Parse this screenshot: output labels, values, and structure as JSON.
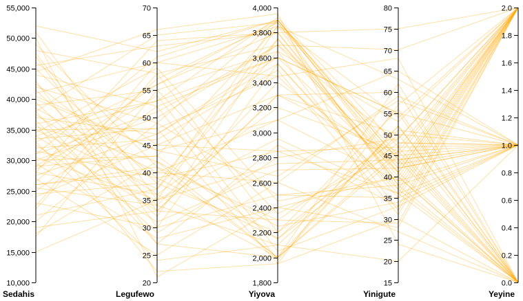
{
  "chart_data": {
    "type": "parallel-coordinates",
    "title": "",
    "line_color": "#ffa500",
    "line_opacity": 0.35,
    "axes": [
      {
        "name": "Sedahis",
        "min": 10000,
        "max": 55000,
        "ticks": [
          10000,
          15000,
          20000,
          25000,
          30000,
          35000,
          40000,
          45000,
          50000,
          55000
        ],
        "tick_labels": [
          "10,000",
          "15,000",
          "20,000",
          "25,000",
          "30,000",
          "35,000",
          "40,000",
          "45,000",
          "50,000",
          "55,000"
        ]
      },
      {
        "name": "Legufewo",
        "min": 20,
        "max": 70,
        "ticks": [
          20,
          25,
          30,
          35,
          40,
          45,
          50,
          55,
          60,
          65,
          70
        ],
        "tick_labels": [
          "20",
          "25",
          "30",
          "35",
          "40",
          "45",
          "50",
          "55",
          "60",
          "65",
          "70"
        ]
      },
      {
        "name": "Yiyova",
        "min": 1800,
        "max": 4000,
        "ticks": [
          1800,
          2000,
          2200,
          2400,
          2600,
          2800,
          3000,
          3200,
          3400,
          3600,
          3800,
          4000
        ],
        "tick_labels": [
          "1,800",
          "2,000",
          "2,200",
          "2,400",
          "2,600",
          "2,800",
          "3,000",
          "3,200",
          "3,400",
          "3,600",
          "3,800",
          "4,000"
        ]
      },
      {
        "name": "Yinigute",
        "min": 15,
        "max": 80,
        "ticks": [
          15,
          20,
          25,
          30,
          35,
          40,
          45,
          50,
          55,
          60,
          65,
          70,
          75,
          80
        ],
        "tick_labels": [
          "15",
          "20",
          "25",
          "30",
          "35",
          "40",
          "45",
          "50",
          "55",
          "60",
          "65",
          "70",
          "75",
          "80"
        ]
      },
      {
        "name": "Yeyine",
        "min": 0,
        "max": 2,
        "ticks": [
          0,
          0.2,
          0.4,
          0.6,
          0.8,
          1.0,
          1.2,
          1.4,
          1.6,
          1.8,
          2.0
        ],
        "tick_labels": [
          "0.0",
          "0.2",
          "0.4",
          "0.6",
          "0.8",
          "1.0",
          "1.2",
          "1.4",
          "1.6",
          "1.8",
          "2.0"
        ]
      }
    ],
    "rows": [
      [
        52000,
        62,
        3900,
        45,
        2
      ],
      [
        51000,
        35,
        3850,
        38,
        1
      ],
      [
        49000,
        41,
        2000,
        52,
        0
      ],
      [
        48000,
        58,
        3700,
        42,
        2
      ],
      [
        47000,
        30,
        2500,
        35,
        1
      ],
      [
        46000,
        45,
        3300,
        60,
        0
      ],
      [
        45500,
        63,
        3800,
        40,
        2
      ],
      [
        45000,
        38,
        2200,
        48,
        1
      ],
      [
        44000,
        52,
        3600,
        55,
        0
      ],
      [
        43000,
        27,
        2900,
        33,
        2
      ],
      [
        42000,
        49,
        3900,
        44,
        1
      ],
      [
        41500,
        34,
        2100,
        50,
        0
      ],
      [
        41000,
        60,
        3450,
        37,
        2
      ],
      [
        40000,
        44,
        2650,
        58,
        1
      ],
      [
        39500,
        32,
        3750,
        41,
        0
      ],
      [
        39000,
        55,
        2350,
        46,
        2
      ],
      [
        38500,
        40,
        3100,
        39,
        1
      ],
      [
        38000,
        65,
        3880,
        43,
        2
      ],
      [
        37500,
        36,
        2000,
        62,
        0
      ],
      [
        37000,
        47,
        3550,
        36,
        1
      ],
      [
        36500,
        29,
        2800,
        49,
        2
      ],
      [
        36000,
        53,
        3920,
        47,
        0
      ],
      [
        35500,
        42,
        2250,
        34,
        1
      ],
      [
        35000,
        37,
        3650,
        53,
        2
      ],
      [
        34500,
        59,
        2450,
        40,
        0
      ],
      [
        34000,
        33,
        3300,
        45,
        1
      ],
      [
        33500,
        48,
        1950,
        57,
        2
      ],
      [
        33000,
        56,
        3800,
        38,
        0
      ],
      [
        32500,
        31,
        2700,
        42,
        1
      ],
      [
        32000,
        46,
        3500,
        31,
        2
      ],
      [
        31500,
        39,
        2150,
        51,
        1
      ],
      [
        31000,
        61,
        3900,
        44,
        0
      ],
      [
        30500,
        35,
        2950,
        36,
        2
      ],
      [
        30000,
        50,
        3700,
        48,
        1
      ],
      [
        29500,
        28,
        2400,
        40,
        0
      ],
      [
        29000,
        43,
        3850,
        54,
        2
      ],
      [
        28500,
        54,
        2050,
        33,
        1
      ],
      [
        28000,
        36,
        3200,
        46,
        0
      ],
      [
        27500,
        47,
        3600,
        41,
        2
      ],
      [
        27000,
        25,
        2600,
        59,
        1
      ],
      [
        26500,
        57,
        3880,
        37,
        0
      ],
      [
        26000,
        41,
        2300,
        49,
        2
      ],
      [
        25500,
        34,
        3400,
        43,
        1
      ],
      [
        25000,
        52,
        1980,
        52,
        0
      ],
      [
        24500,
        38,
        3750,
        39,
        2
      ],
      [
        24000,
        45,
        2850,
        47,
        1
      ],
      [
        23000,
        30,
        3550,
        35,
        2
      ],
      [
        22000,
        58,
        2200,
        56,
        0
      ],
      [
        21000,
        37,
        3900,
        42,
        1
      ],
      [
        20000,
        49,
        2500,
        38,
        2
      ],
      [
        19000,
        33,
        3300,
        50,
        1
      ],
      [
        18000,
        42,
        2000,
        45,
        0
      ],
      [
        17500,
        55,
        3650,
        32,
        2
      ],
      [
        15000,
        35,
        2750,
        44,
        1
      ],
      [
        50000,
        21,
        2400,
        28,
        2
      ],
      [
        44500,
        66,
        3950,
        24,
        0
      ],
      [
        33000,
        24,
        2100,
        20,
        1
      ],
      [
        28000,
        64,
        3800,
        75,
        2
      ],
      [
        36000,
        22,
        1950,
        30,
        0
      ],
      [
        40500,
        44,
        3100,
        65,
        1
      ],
      [
        31000,
        51,
        3700,
        70,
        2
      ],
      [
        26000,
        40,
        2600,
        27,
        0
      ],
      [
        22500,
        60,
        3850,
        63,
        1
      ],
      [
        47500,
        33,
        2300,
        29,
        2
      ],
      [
        35000,
        48,
        3450,
        68,
        0
      ],
      [
        38000,
        27,
        2000,
        46,
        1
      ],
      [
        29000,
        56,
        3900,
        41,
        2
      ],
      [
        42500,
        39,
        2850,
        36,
        0
      ],
      [
        34000,
        53,
        3600,
        55,
        1
      ],
      [
        30000,
        43,
        2150,
        47,
        2
      ]
    ]
  }
}
